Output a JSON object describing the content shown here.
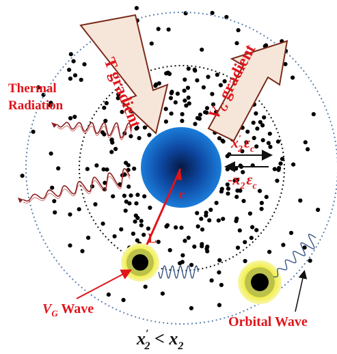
{
  "labels": {
    "thermal_line1": "Thermal",
    "thermal_line2": "Radiation",
    "t_gradient": "T gradient",
    "vg_gradient_sym": "V",
    "vg_gradient_sub": "G",
    "vg_gradient_word": " gradient",
    "radius": "r",
    "distance": "L",
    "vg_wave_sym": "V",
    "vg_wave_sub": "G",
    "vg_wave_word": " Wave",
    "orbital_wave": "Orbital Wave",
    "outward": {
      "var": "x",
      "prime": "′",
      "sub": "2",
      "eps": "ε",
      "eps_sub": "c"
    },
    "inward": {
      "sign": "-",
      "var": "x",
      "sub": "2",
      "eps": "ε",
      "eps_sub": "c"
    },
    "bottom_relation": {
      "lhs_var": "x",
      "lhs_prime": "′",
      "lhs_sub": "2",
      "op": " < ",
      "rhs_var": "x",
      "rhs_sub": "2"
    }
  },
  "colors": {
    "label_red": "#e0141a",
    "core_blue": "#1565c0",
    "core_dark": "#0a2a66",
    "outer_ring": "#5b7fb0",
    "arrow_fill": "#f6e6da",
    "arrow_stroke": "#7a2a1a",
    "halo": "#f2ef4a",
    "thermal_wave": "#8a2020",
    "vg_wave": "#37558a"
  }
}
